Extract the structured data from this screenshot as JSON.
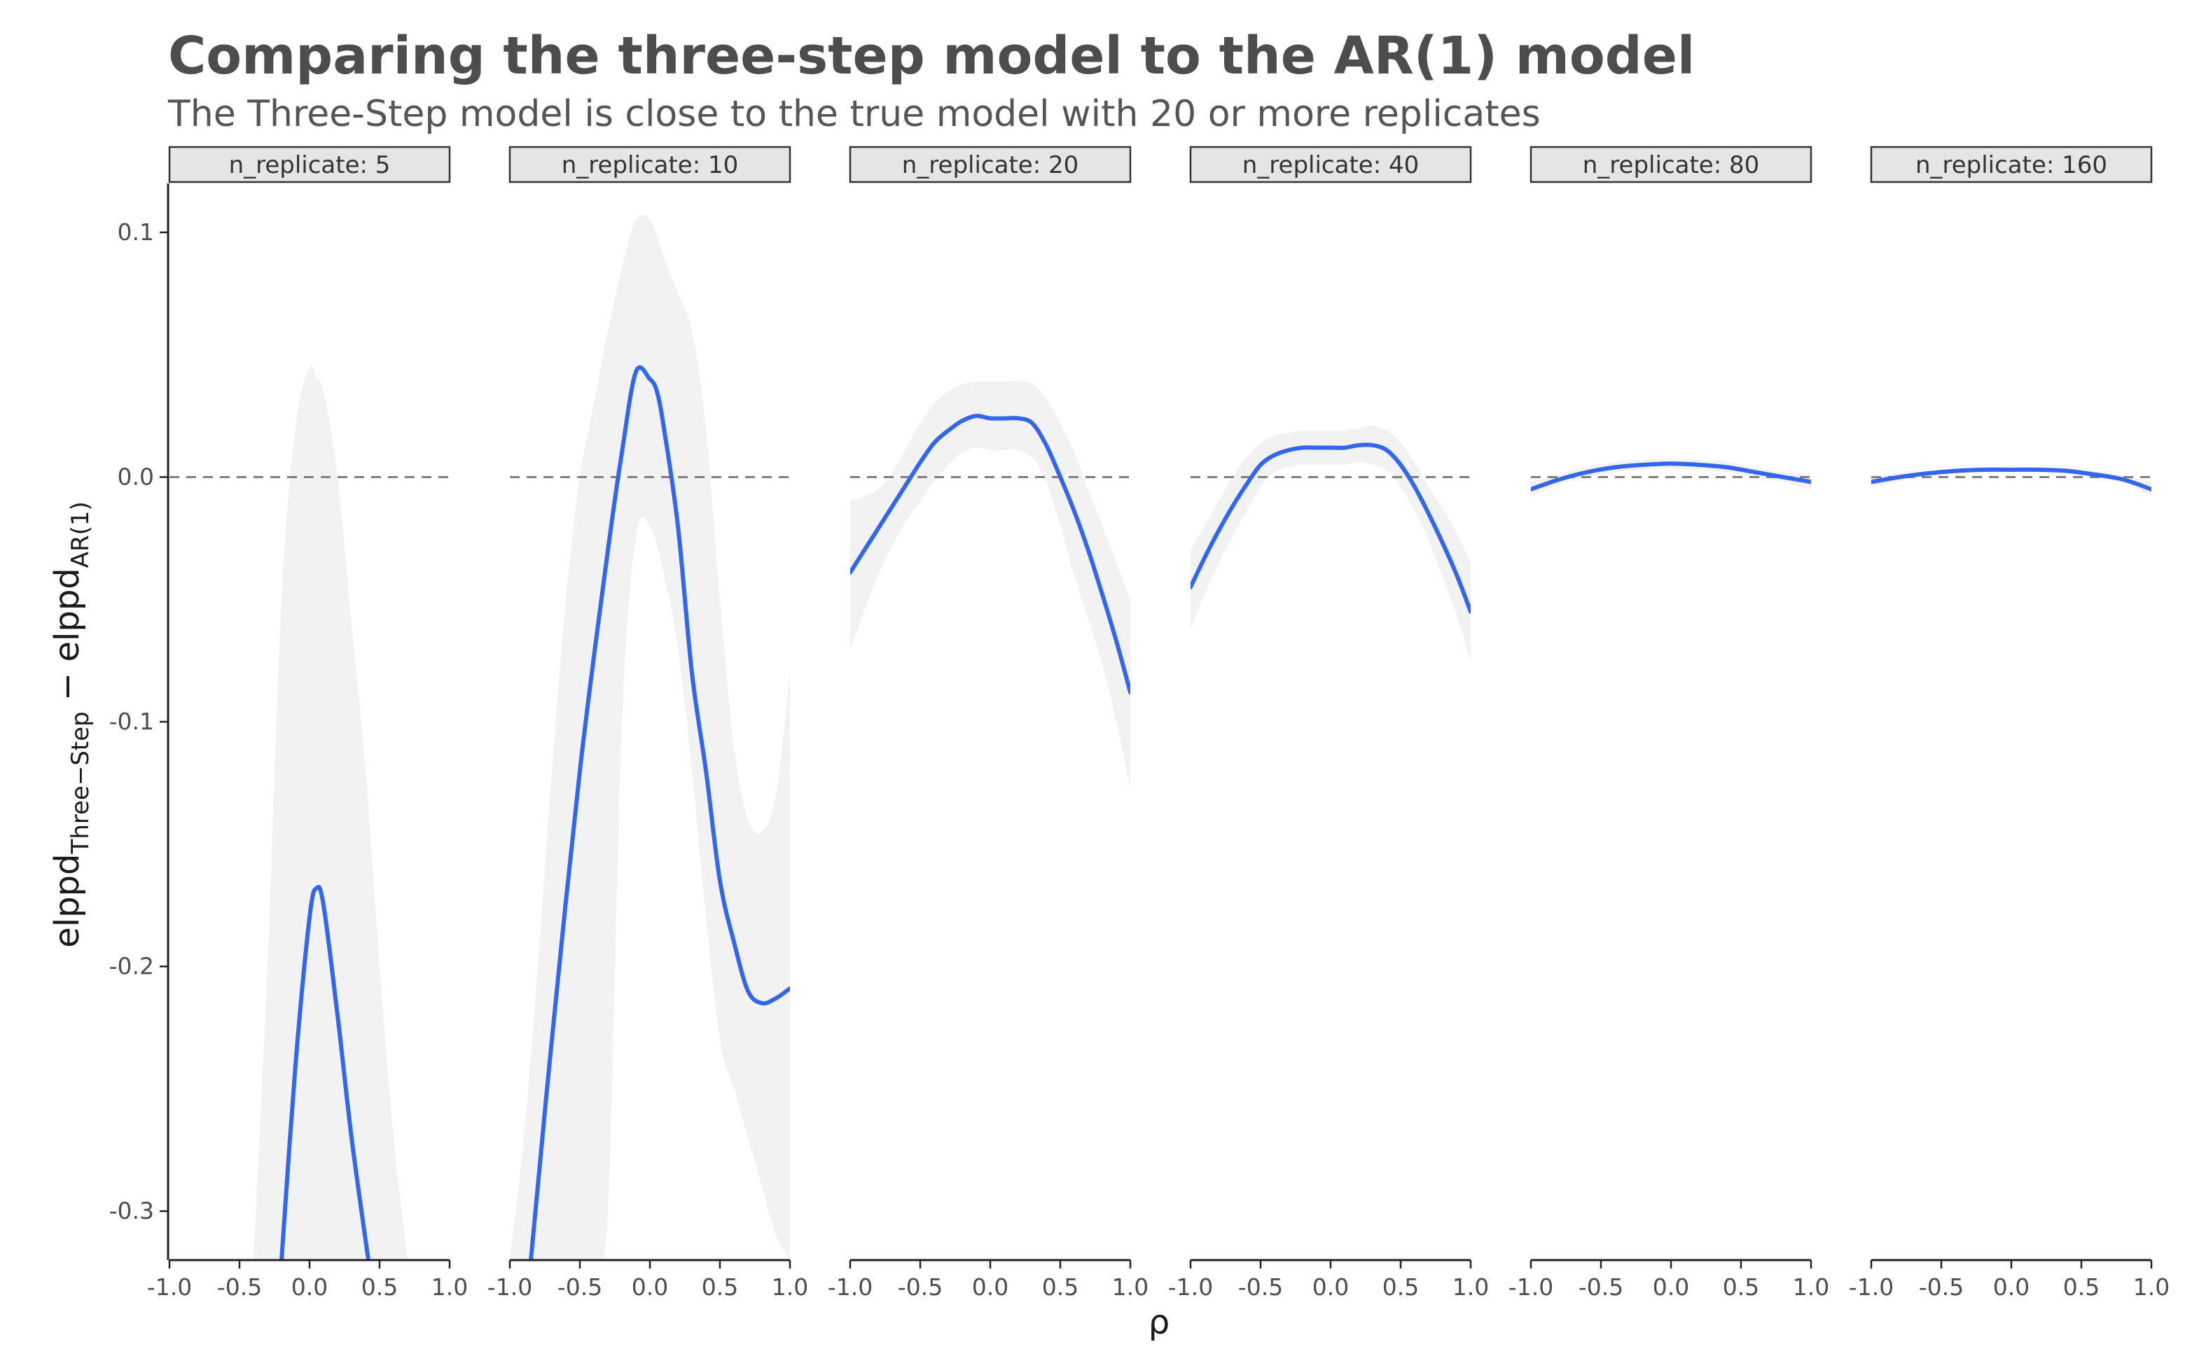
{
  "chart_data": {
    "type": "line",
    "title": "Comparing the three-step model to the AR(1) model",
    "subtitle": "The Three-Step model is close to the true model with 20 or more replicates",
    "xlabel": "ρ",
    "ylabel": {
      "main_1": "elppd",
      "sub_1": "Three−Step",
      "minus": " − ",
      "main_2": "elppd",
      "sub_2": "AR(1)"
    },
    "xlim": [
      -1.0,
      1.0
    ],
    "ylim": [
      -0.32,
      0.12
    ],
    "x_ticks": [
      "-1.0",
      "-0.5",
      "0.0",
      "0.5",
      "1.0"
    ],
    "y_ticks": [
      "0.1",
      "0.0",
      "-0.1",
      "-0.2",
      "-0.3"
    ],
    "reference_line": 0.0,
    "colors": {
      "line": "#3366ee",
      "ribbon": "#f2f2f2",
      "reference": "#808080",
      "strip_fill": "#e5e5e5"
    },
    "panels": [
      {
        "label": "n_replicate: 5",
        "x": [
          -0.2,
          -0.1,
          0.0,
          0.05,
          0.1,
          0.2,
          0.3,
          0.42
        ],
        "y": [
          -0.32,
          -0.24,
          -0.18,
          -0.168,
          -0.175,
          -0.22,
          -0.27,
          -0.32
        ],
        "ribbon_x": [
          -0.4,
          -0.3,
          -0.2,
          -0.1,
          0.0,
          0.05,
          0.1,
          0.2,
          0.3,
          0.4,
          0.5,
          0.6,
          0.7
        ],
        "ribbon_upper": [
          -0.32,
          -0.2,
          -0.05,
          0.02,
          0.045,
          0.04,
          0.035,
          0.0,
          -0.06,
          -0.12,
          -0.2,
          -0.27,
          -0.32
        ],
        "ribbon_lower": [
          -0.32,
          -0.32,
          -0.32,
          -0.32,
          -0.32,
          -0.32,
          -0.32,
          -0.32,
          -0.32,
          -0.32,
          -0.32,
          -0.32,
          -0.32
        ]
      },
      {
        "label": "n_replicate: 10",
        "x": [
          -0.85,
          -0.7,
          -0.5,
          -0.3,
          -0.2,
          -0.1,
          0.0,
          0.05,
          0.1,
          0.2,
          0.3,
          0.4,
          0.5,
          0.6,
          0.7,
          0.8,
          0.9,
          1.0
        ],
        "y": [
          -0.32,
          -0.23,
          -0.12,
          -0.03,
          0.01,
          0.043,
          0.04,
          0.035,
          0.02,
          -0.02,
          -0.08,
          -0.12,
          -0.165,
          -0.19,
          -0.21,
          -0.215,
          -0.213,
          -0.209
        ],
        "ribbon_x": [
          -1.0,
          -0.9,
          -0.8,
          -0.7,
          -0.6,
          -0.5,
          -0.4,
          -0.3,
          -0.2,
          -0.1,
          0.0,
          0.1,
          0.2,
          0.3,
          0.4,
          0.5,
          0.6,
          0.7,
          0.8,
          0.9,
          1.0
        ],
        "ribbon_upper": [
          -0.32,
          -0.27,
          -0.2,
          -0.12,
          -0.05,
          0.0,
          0.03,
          0.06,
          0.085,
          0.105,
          0.105,
          0.09,
          0.075,
          0.06,
          0.02,
          -0.05,
          -0.11,
          -0.14,
          -0.145,
          -0.13,
          -0.08
        ],
        "ribbon_lower": [
          -0.32,
          -0.32,
          -0.32,
          -0.32,
          -0.32,
          -0.32,
          -0.32,
          -0.3,
          -0.1,
          -0.025,
          -0.02,
          -0.04,
          -0.07,
          -0.12,
          -0.18,
          -0.23,
          -0.25,
          -0.27,
          -0.29,
          -0.31,
          -0.32
        ]
      },
      {
        "label": "n_replicate: 20",
        "x": [
          -1.0,
          -0.9,
          -0.8,
          -0.7,
          -0.6,
          -0.5,
          -0.4,
          -0.3,
          -0.2,
          -0.1,
          0.0,
          0.1,
          0.2,
          0.3,
          0.4,
          0.5,
          0.6,
          0.7,
          0.8,
          0.9,
          1.0
        ],
        "y": [
          -0.039,
          -0.03,
          -0.021,
          -0.012,
          -0.003,
          0.006,
          0.014,
          0.019,
          0.023,
          0.025,
          0.024,
          0.024,
          0.024,
          0.022,
          0.013,
          0.0,
          -0.014,
          -0.03,
          -0.048,
          -0.067,
          -0.088
        ],
        "ribbon_x": [
          -1.0,
          -0.9,
          -0.8,
          -0.7,
          -0.6,
          -0.5,
          -0.4,
          -0.3,
          -0.2,
          -0.1,
          0.0,
          0.1,
          0.2,
          0.3,
          0.4,
          0.5,
          0.6,
          0.7,
          0.8,
          0.9,
          1.0
        ],
        "ribbon_upper": [
          -0.01,
          -0.008,
          -0.005,
          0.002,
          0.012,
          0.022,
          0.03,
          0.035,
          0.038,
          0.039,
          0.039,
          0.039,
          0.039,
          0.038,
          0.032,
          0.022,
          0.01,
          -0.005,
          -0.02,
          -0.035,
          -0.05
        ],
        "ribbon_lower": [
          -0.07,
          -0.055,
          -0.04,
          -0.028,
          -0.018,
          -0.01,
          -0.002,
          0.005,
          0.01,
          0.012,
          0.011,
          0.011,
          0.011,
          0.008,
          -0.002,
          -0.02,
          -0.04,
          -0.058,
          -0.077,
          -0.1,
          -0.127
        ]
      },
      {
        "label": "n_replicate: 40",
        "x": [
          -1.0,
          -0.9,
          -0.8,
          -0.7,
          -0.6,
          -0.5,
          -0.4,
          -0.3,
          -0.2,
          -0.1,
          0.0,
          0.1,
          0.2,
          0.3,
          0.4,
          0.5,
          0.6,
          0.7,
          0.8,
          0.9,
          1.0
        ],
        "y": [
          -0.045,
          -0.033,
          -0.022,
          -0.012,
          -0.003,
          0.005,
          0.009,
          0.011,
          0.012,
          0.012,
          0.012,
          0.012,
          0.013,
          0.013,
          0.011,
          0.005,
          -0.004,
          -0.015,
          -0.027,
          -0.04,
          -0.055
        ],
        "ribbon_x": [
          -1.0,
          -0.9,
          -0.8,
          -0.7,
          -0.6,
          -0.5,
          -0.4,
          -0.3,
          -0.2,
          -0.1,
          0.0,
          0.1,
          0.2,
          0.3,
          0.4,
          0.5,
          0.6,
          0.7,
          0.8,
          0.9,
          1.0
        ],
        "ribbon_upper": [
          -0.03,
          -0.02,
          -0.01,
          0.0,
          0.008,
          0.014,
          0.017,
          0.018,
          0.019,
          0.019,
          0.019,
          0.019,
          0.02,
          0.021,
          0.019,
          0.014,
          0.006,
          -0.004,
          -0.013,
          -0.023,
          -0.035
        ],
        "ribbon_lower": [
          -0.062,
          -0.048,
          -0.035,
          -0.024,
          -0.014,
          -0.004,
          0.002,
          0.004,
          0.005,
          0.005,
          0.005,
          0.005,
          0.006,
          0.005,
          0.003,
          -0.004,
          -0.014,
          -0.026,
          -0.041,
          -0.057,
          -0.075
        ]
      },
      {
        "label": "n_replicate: 80",
        "x": [
          -1.0,
          -0.8,
          -0.6,
          -0.4,
          -0.2,
          0.0,
          0.2,
          0.4,
          0.6,
          0.8,
          1.0
        ],
        "y": [
          -0.005,
          -0.001,
          0.002,
          0.004,
          0.005,
          0.0055,
          0.005,
          0.004,
          0.002,
          0.0,
          -0.002
        ],
        "ribbon_x": [
          -1.0,
          -0.8,
          -0.6,
          -0.4,
          -0.2,
          0.0,
          0.2,
          0.4,
          0.6,
          0.8,
          1.0
        ],
        "ribbon_upper": [
          -0.002,
          0.001,
          0.004,
          0.006,
          0.007,
          0.0075,
          0.007,
          0.006,
          0.004,
          0.002,
          0.001
        ],
        "ribbon_lower": [
          -0.008,
          -0.003,
          0.0,
          0.002,
          0.003,
          0.0035,
          0.003,
          0.002,
          0.0,
          -0.002,
          -0.005
        ]
      },
      {
        "label": "n_replicate: 160",
        "x": [
          -1.0,
          -0.8,
          -0.6,
          -0.4,
          -0.2,
          0.0,
          0.2,
          0.4,
          0.6,
          0.8,
          1.0
        ],
        "y": [
          -0.002,
          0.0,
          0.0015,
          0.0025,
          0.003,
          0.003,
          0.003,
          0.0025,
          0.001,
          -0.001,
          -0.005
        ],
        "ribbon_x": [
          -1.0,
          -0.8,
          -0.6,
          -0.4,
          -0.2,
          0.0,
          0.2,
          0.4,
          0.6,
          0.8,
          1.0
        ],
        "ribbon_upper": [
          0.0,
          0.0015,
          0.0025,
          0.0035,
          0.004,
          0.004,
          0.004,
          0.0035,
          0.0025,
          0.0005,
          -0.002
        ],
        "ribbon_lower": [
          -0.004,
          -0.0015,
          0.0005,
          0.0015,
          0.002,
          0.002,
          0.002,
          0.0015,
          -0.0005,
          -0.0025,
          -0.008
        ]
      }
    ]
  }
}
